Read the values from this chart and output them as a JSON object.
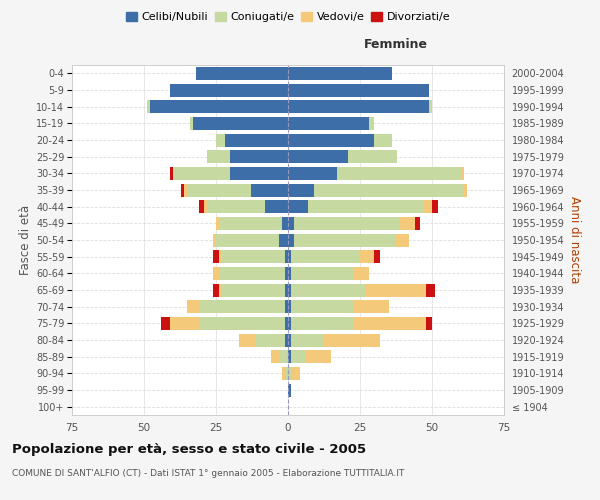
{
  "age_groups": [
    "100+",
    "95-99",
    "90-94",
    "85-89",
    "80-84",
    "75-79",
    "70-74",
    "65-69",
    "60-64",
    "55-59",
    "50-54",
    "45-49",
    "40-44",
    "35-39",
    "30-34",
    "25-29",
    "20-24",
    "15-19",
    "10-14",
    "5-9",
    "0-4"
  ],
  "birth_years": [
    "≤ 1904",
    "1905-1909",
    "1910-1914",
    "1915-1919",
    "1920-1924",
    "1925-1929",
    "1930-1934",
    "1935-1939",
    "1940-1944",
    "1945-1949",
    "1950-1954",
    "1955-1959",
    "1960-1964",
    "1965-1969",
    "1970-1974",
    "1975-1979",
    "1980-1984",
    "1985-1989",
    "1990-1994",
    "1995-1999",
    "2000-2004"
  ],
  "males": {
    "celibe": [
      0,
      0,
      0,
      0,
      1,
      1,
      1,
      1,
      1,
      1,
      3,
      2,
      8,
      13,
      20,
      20,
      22,
      33,
      48,
      41,
      32
    ],
    "coniugato": [
      0,
      0,
      1,
      3,
      10,
      30,
      30,
      22,
      23,
      22,
      22,
      22,
      20,
      22,
      20,
      8,
      3,
      1,
      1,
      0,
      0
    ],
    "vedovo": [
      0,
      0,
      1,
      3,
      6,
      10,
      4,
      1,
      2,
      1,
      1,
      1,
      1,
      1,
      0,
      0,
      0,
      0,
      0,
      0,
      0
    ],
    "divorziato": [
      0,
      0,
      0,
      0,
      0,
      3,
      0,
      2,
      0,
      2,
      0,
      0,
      2,
      1,
      1,
      0,
      0,
      0,
      0,
      0,
      0
    ]
  },
  "females": {
    "nubile": [
      0,
      1,
      0,
      1,
      1,
      1,
      1,
      1,
      1,
      1,
      2,
      2,
      7,
      9,
      17,
      21,
      30,
      28,
      49,
      49,
      36
    ],
    "coniugata": [
      0,
      0,
      1,
      5,
      11,
      22,
      22,
      26,
      22,
      24,
      35,
      37,
      40,
      52,
      43,
      17,
      6,
      2,
      1,
      0,
      0
    ],
    "vedova": [
      0,
      0,
      3,
      9,
      20,
      25,
      12,
      21,
      5,
      5,
      5,
      5,
      3,
      1,
      1,
      0,
      0,
      0,
      0,
      0,
      0
    ],
    "divorziata": [
      0,
      0,
      0,
      0,
      0,
      2,
      0,
      3,
      0,
      2,
      0,
      2,
      2,
      0,
      0,
      0,
      0,
      0,
      0,
      0,
      0
    ]
  },
  "colors": {
    "celibe": "#3d6ea8",
    "coniugato": "#c5d9a0",
    "vedovo": "#f5c97a",
    "divorziato": "#cc1111"
  },
  "xlim": 75,
  "title": "Popolazione per età, sesso e stato civile - 2005",
  "subtitle": "COMUNE DI SANT'ALFIO (CT) - Dati ISTAT 1° gennaio 2005 - Elaborazione TUTTITALIA.IT",
  "ylabel_left": "Fasce di età",
  "ylabel_right": "Anni di nascita",
  "xlabel_females": "Femmine",
  "background_color": "#f5f5f5",
  "plot_bg_color": "#ffffff",
  "grid_color": "#dddddd"
}
